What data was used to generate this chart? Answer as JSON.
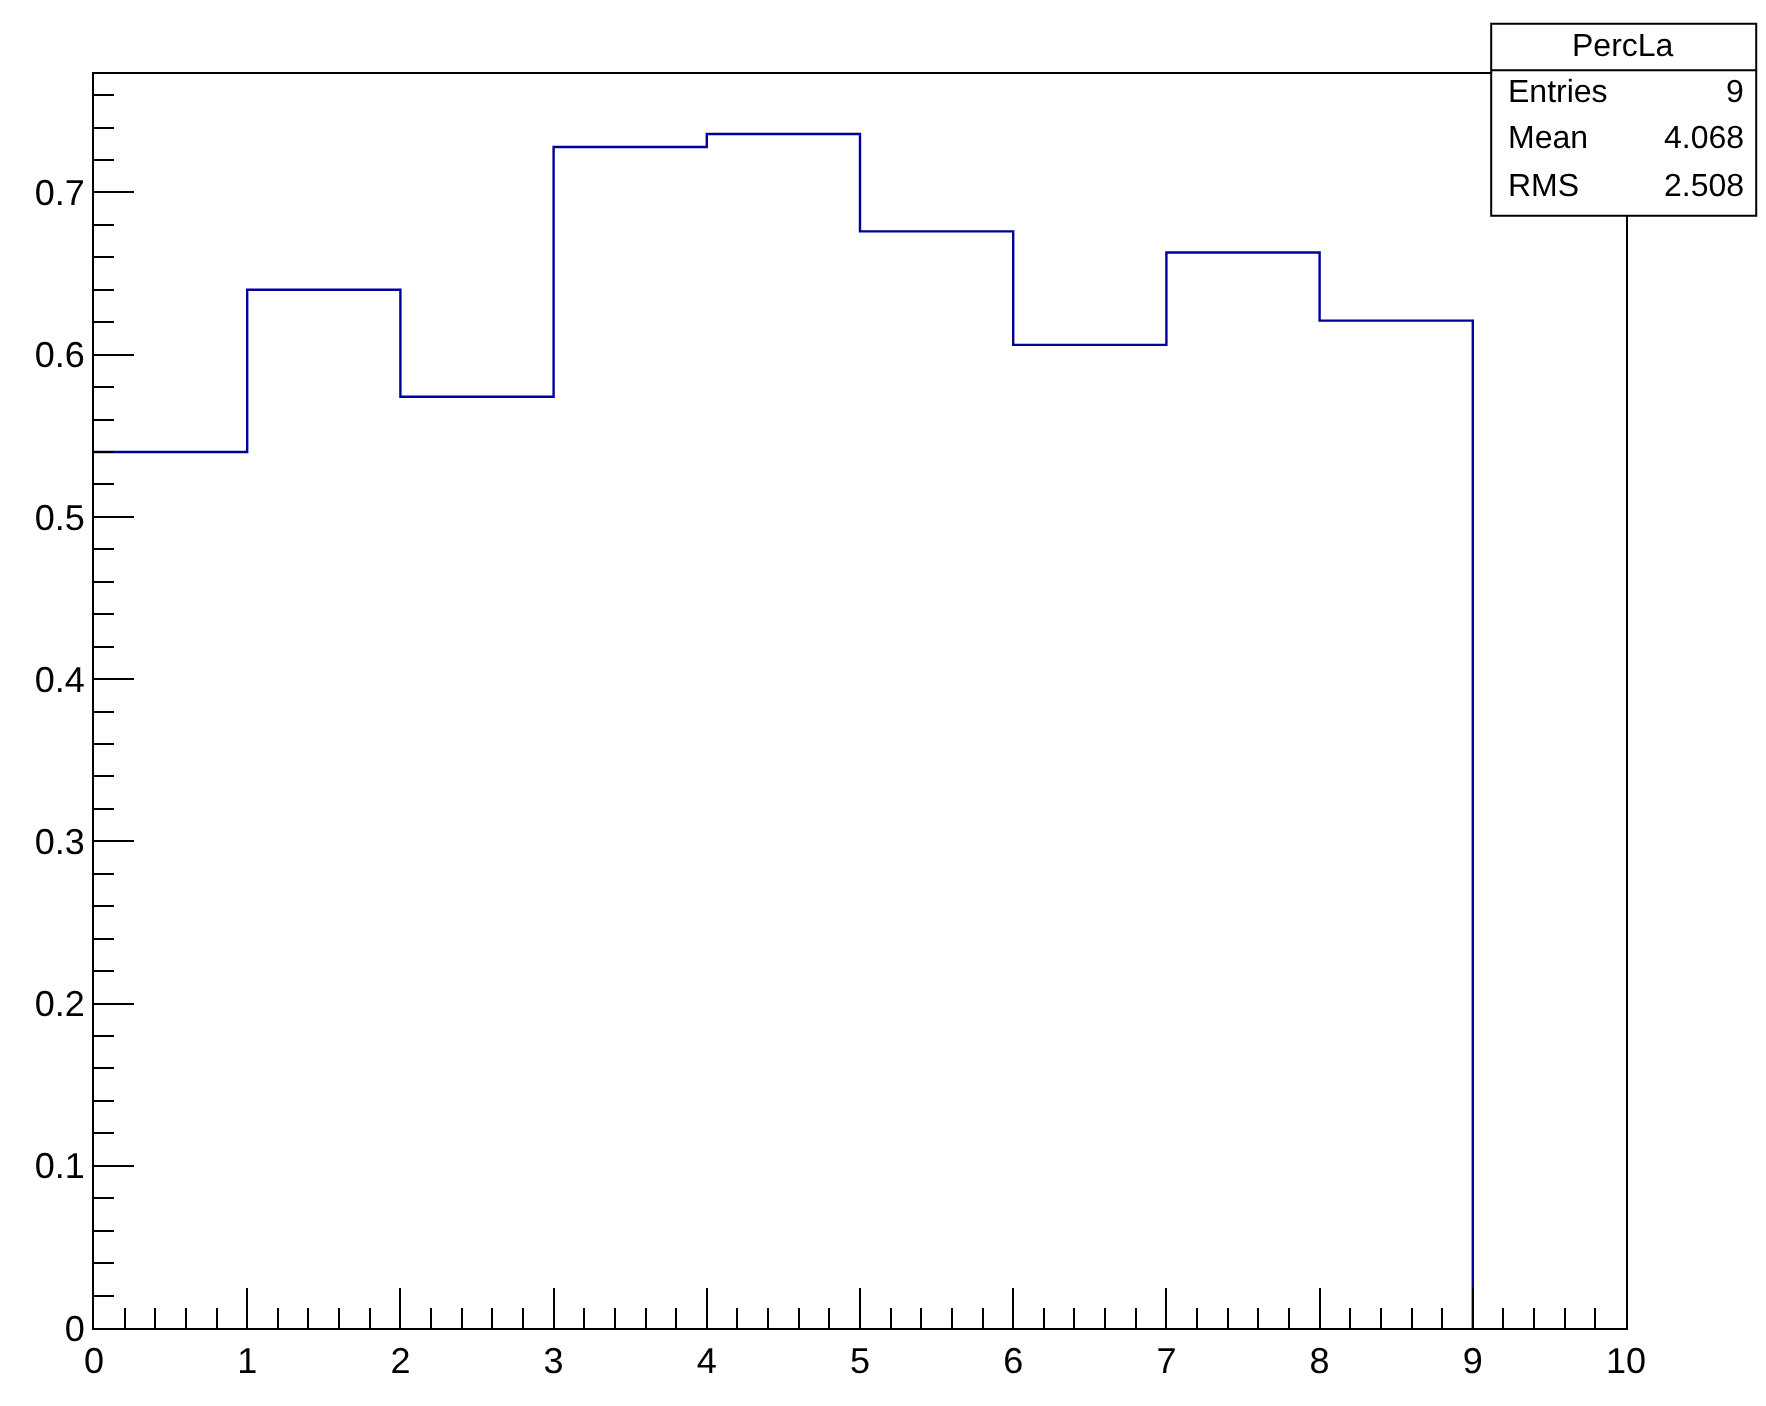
{
  "chart_data": {
    "type": "histogram",
    "bins": [
      0,
      1,
      2,
      3,
      4,
      5,
      6,
      7,
      8,
      9
    ],
    "values": [
      0.54,
      0.64,
      0.574,
      0.728,
      0.736,
      0.676,
      0.606,
      0.663,
      0.621
    ],
    "color": "#00009b",
    "xlim": [
      0,
      10
    ],
    "xticks": [
      0,
      1,
      2,
      3,
      4,
      5,
      6,
      7,
      8,
      9,
      10
    ],
    "ylim": [
      0,
      0.773
    ],
    "yticks": [
      0,
      0.1,
      0.2,
      0.3,
      0.4,
      0.5,
      0.6,
      0.7
    ],
    "annotations": [
      "PercLa",
      "Entries",
      "9",
      "Mean",
      "4.068",
      "RMS",
      "2.508"
    ]
  }
}
